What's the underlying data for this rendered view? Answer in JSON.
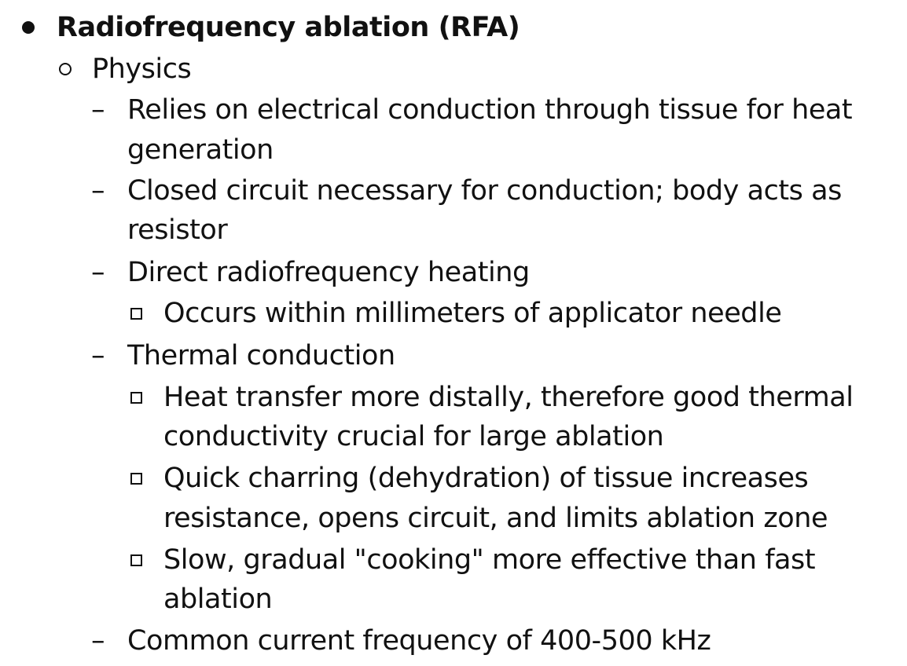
{
  "outline": {
    "title": "Radiofrequency ablation (RFA)",
    "section": "Physics",
    "dash_glyph": "–",
    "items": [
      {
        "lines": [
          "Relies on electrical conduction through tissue for heat",
          "generation"
        ]
      },
      {
        "lines": [
          "Closed circuit necessary for conduction; body acts as",
          "resistor"
        ]
      },
      {
        "lines": [
          "Direct radiofrequency heating"
        ],
        "subitems": [
          {
            "lines": [
              "Occurs within millimeters of applicator needle"
            ]
          }
        ]
      },
      {
        "lines": [
          "Thermal conduction"
        ],
        "subitems": [
          {
            "lines": [
              "Heat transfer more distally, therefore good thermal",
              "conductivity crucial for large ablation"
            ]
          },
          {
            "lines": [
              "Quick charring (dehydration) of tissue increases",
              "resistance, opens circuit, and limits ablation zone"
            ]
          },
          {
            "lines": [
              "Slow, gradual \"cooking\" more effective than fast",
              "ablation"
            ]
          }
        ]
      },
      {
        "lines": [
          "Common current frequency of 400-500 kHz"
        ]
      }
    ]
  }
}
